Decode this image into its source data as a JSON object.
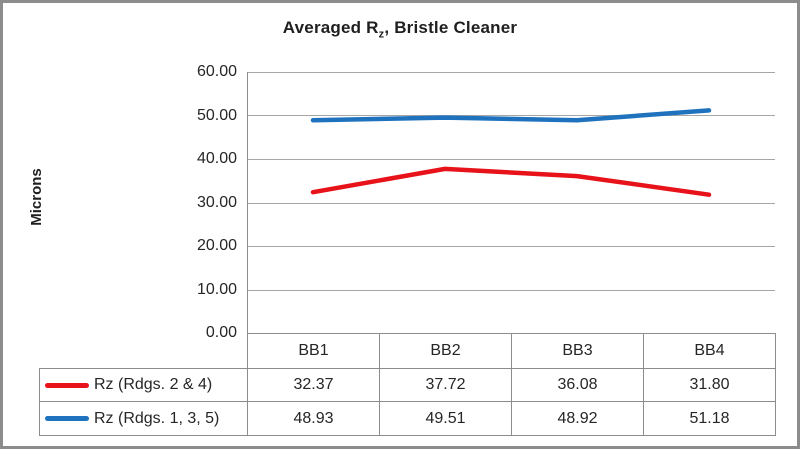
{
  "window": {
    "border_color": "#8C8C8C",
    "background": "#FFFFFF"
  },
  "chart_data": {
    "type": "line",
    "title": "Averaged Rz, Bristle Cleaner",
    "title_parts": {
      "prefix": "Averaged R",
      "subscript": "z",
      "suffix": ", Bristle Cleaner"
    },
    "ylabel": "Microns",
    "xlabel": "",
    "categories": [
      "BB1",
      "BB2",
      "BB3",
      "BB4"
    ],
    "series": [
      {
        "name": "Rz (Rdgs. 2 & 4)",
        "color": "#E8121A",
        "values": [
          32.37,
          37.72,
          36.08,
          31.8
        ],
        "values_display": [
          "32.37",
          "37.72",
          "36.08",
          "31.80"
        ]
      },
      {
        "name": "Rz (Rdgs. 1, 3, 5)",
        "color": "#1F72BE",
        "values": [
          48.93,
          49.51,
          48.92,
          51.18
        ],
        "values_display": [
          "48.93",
          "49.51",
          "48.92",
          "51.18"
        ]
      }
    ],
    "ylim": [
      0,
      60
    ],
    "ytick_labels": [
      "60.00",
      "50.00",
      "40.00",
      "30.00",
      "20.00",
      "10.00",
      "0.00"
    ],
    "ytick_values": [
      60,
      50,
      40,
      30,
      20,
      10,
      0
    ],
    "grid": true,
    "gridline_color": "#A6A6A6",
    "axis_line_color": "#8C8C8C",
    "table_border_color": "#8C8C8C",
    "text_color": "#262626",
    "legend_position": "table-left"
  }
}
